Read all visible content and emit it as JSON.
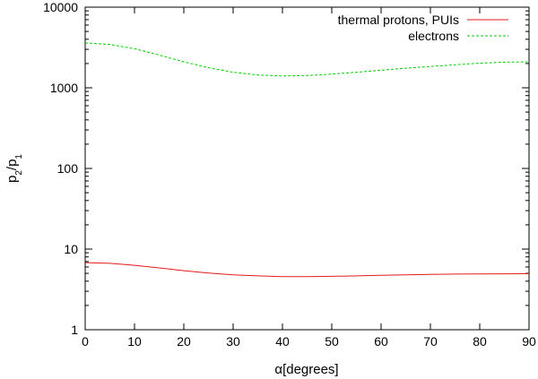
{
  "chart_data": {
    "type": "line",
    "xlabel": "α[degrees]",
    "ylabel_main": "p",
    "ylabel_sub2": "2",
    "ylabel_sep": "/p",
    "ylabel_sub1": "1",
    "xlim": [
      0,
      90
    ],
    "ylim": [
      1,
      10000
    ],
    "yscale": "log",
    "grid": false,
    "legend_position": "top-right",
    "x_ticks": [
      0,
      10,
      20,
      30,
      40,
      50,
      60,
      70,
      80,
      90
    ],
    "y_ticks": [
      {
        "value": 1,
        "label": "1"
      },
      {
        "value": 10,
        "label": "10"
      },
      {
        "value": 100,
        "label": "100"
      },
      {
        "value": 1000,
        "label": "1000"
      },
      {
        "value": 10000,
        "label": "10000"
      }
    ],
    "x": [
      0,
      5,
      10,
      15,
      20,
      25,
      30,
      35,
      40,
      45,
      50,
      55,
      60,
      65,
      70,
      75,
      80,
      85,
      90
    ],
    "series": [
      {
        "name": "thermal protons, PUIs",
        "color": "#e41a1c",
        "dash": "solid",
        "values": [
          6.8,
          6.65,
          6.3,
          5.85,
          5.4,
          5.05,
          4.8,
          4.65,
          4.55,
          4.55,
          4.6,
          4.65,
          4.72,
          4.8,
          4.85,
          4.9,
          4.92,
          4.94,
          4.95
        ]
      },
      {
        "name": "electrons",
        "color": "#00d000",
        "dash": "dashed",
        "values": [
          3600,
          3450,
          3050,
          2550,
          2100,
          1780,
          1560,
          1440,
          1400,
          1420,
          1480,
          1560,
          1650,
          1750,
          1840,
          1930,
          2020,
          2080,
          2100
        ]
      }
    ]
  }
}
